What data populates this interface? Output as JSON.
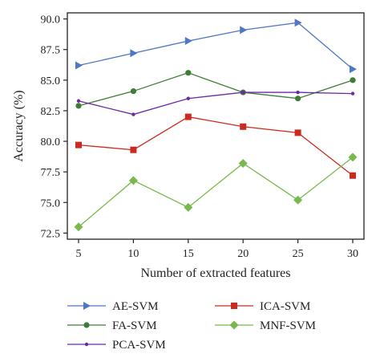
{
  "chart_data": {
    "type": "line",
    "title": "",
    "xlabel": "Number of extracted features",
    "ylabel": "Accuracy (%)",
    "x": [
      5,
      10,
      15,
      20,
      25,
      30
    ],
    "x_ticks": [
      "5",
      "10",
      "15",
      "20",
      "25",
      "30"
    ],
    "xlim": [
      5,
      30
    ],
    "y_ticks": [
      "72.5",
      "75.0",
      "77.5",
      "80.0",
      "82.5",
      "85.0",
      "87.5",
      "90.0"
    ],
    "ylim": [
      72.0,
      90.5
    ],
    "grid": false,
    "legend_position": "below",
    "series": [
      {
        "name": "AE-SVM",
        "color": "#4f78c4",
        "marker": "triangle-right",
        "values": [
          86.2,
          87.2,
          88.2,
          89.1,
          89.7,
          85.9
        ]
      },
      {
        "name": "FA-SVM",
        "color": "#3e7d35",
        "marker": "circle",
        "values": [
          82.9,
          84.1,
          85.6,
          84.0,
          83.5,
          85.0
        ]
      },
      {
        "name": "PCA-SVM",
        "color": "#6a2ba0",
        "marker": "small-circle",
        "values": [
          83.3,
          82.2,
          83.5,
          84.0,
          84.0,
          83.9
        ]
      },
      {
        "name": "ICA-SVM",
        "color": "#cc2a1e",
        "marker": "square",
        "values": [
          79.7,
          79.3,
          82.0,
          81.2,
          80.7,
          77.2
        ]
      },
      {
        "name": "MNF-SVM",
        "color": "#79b84c",
        "marker": "diamond",
        "values": [
          73.0,
          76.8,
          74.6,
          78.2,
          75.2,
          78.7
        ]
      }
    ]
  }
}
